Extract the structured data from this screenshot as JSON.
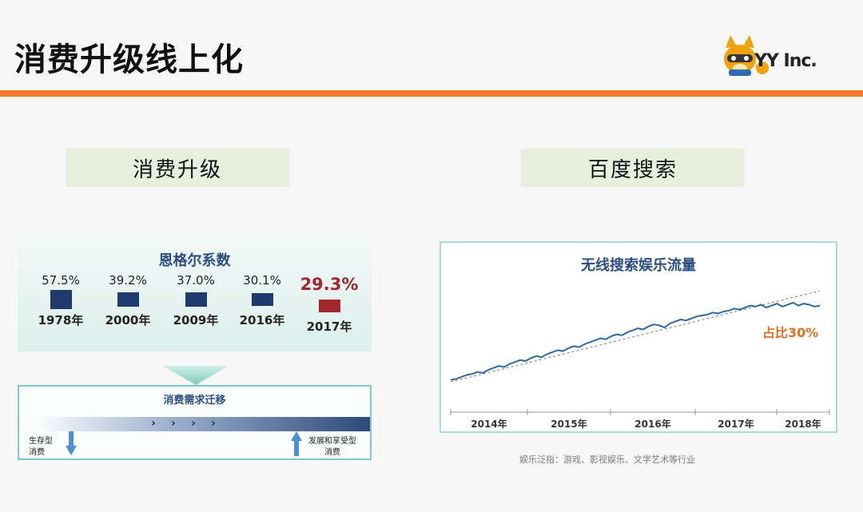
{
  "slide": {
    "title": "消费升级线上化",
    "logo_text": "YY Inc.",
    "accent_color": "#f07a2a"
  },
  "sections": {
    "left_heading": "消费升级",
    "right_heading": "百度搜索"
  },
  "engel": {
    "title": "恩格尔系数",
    "bar_color": "#1f3a6e",
    "highlight_color": "#a3282c"
  },
  "demand": {
    "title": "消费需求迁移",
    "chevrons": [
      "›",
      "›",
      "›",
      "›"
    ],
    "left_label_line1": "生存型",
    "left_label_line2": "消费",
    "right_label_line1": "发展和享受型",
    "right_label_line2": "消费"
  },
  "caption": "娱乐泛指：游戏、影视娱乐、文学艺术等行业",
  "chart_data": [
    {
      "type": "bar",
      "title": "恩格尔系数",
      "categories": [
        "1978年",
        "2000年",
        "2009年",
        "2016年",
        "2017年"
      ],
      "values": [
        57.5,
        39.2,
        37.0,
        30.1,
        29.3
      ],
      "value_labels": [
        "57.5%",
        "39.2%",
        "37.0%",
        "30.1%",
        "29.3%"
      ],
      "highlight_index": 4
    },
    {
      "type": "line",
      "title": "无线搜索娱乐流量",
      "x_ticks": [
        "2014年",
        "2015年",
        "2016年",
        "2017年",
        "2018年"
      ],
      "series": [
        {
          "values": [
            10,
            11,
            13,
            15,
            16,
            18,
            17,
            20,
            22,
            24,
            23,
            26,
            28,
            30,
            29,
            32,
            34,
            33,
            36,
            38,
            40,
            39,
            42,
            44,
            43,
            46,
            48,
            50,
            52,
            51,
            54,
            56,
            55,
            58,
            60,
            62,
            61,
            64,
            66,
            65,
            63,
            67,
            69,
            71,
            70,
            72,
            74,
            75,
            76,
            78,
            77,
            79,
            80,
            82,
            81,
            83,
            85,
            84,
            86,
            83,
            85,
            87,
            84,
            86,
            88,
            85,
            87,
            86,
            84,
            85
          ]
        }
      ],
      "trend": "dashed linear",
      "annotation": "占比30%",
      "line_color": "#2a6aa3",
      "annotation_color": "#e0701e"
    }
  ]
}
